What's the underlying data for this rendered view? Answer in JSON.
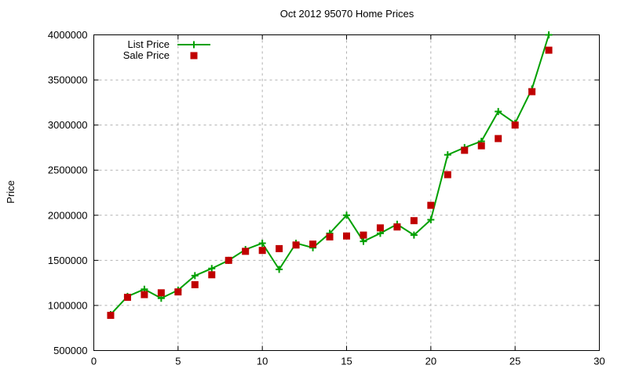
{
  "chart_data": {
    "type": "line",
    "title": "Oct 2012 95070 Home Prices",
    "xlabel": "",
    "ylabel": "Price",
    "xlim": [
      0,
      30
    ],
    "ylim": [
      500000,
      4000000
    ],
    "x_ticks": [
      0,
      5,
      10,
      15,
      20,
      25,
      30
    ],
    "y_ticks": [
      500000,
      1000000,
      1500000,
      2000000,
      2500000,
      3000000,
      3500000,
      4000000
    ],
    "grid": true,
    "grid_style": "dashed",
    "legend_position": "top-left-inside",
    "x": [
      1,
      2,
      3,
      4,
      5,
      6,
      7,
      8,
      9,
      10,
      11,
      12,
      13,
      14,
      15,
      16,
      17,
      18,
      19,
      20,
      21,
      22,
      23,
      24,
      25,
      26,
      27
    ],
    "series": [
      {
        "name": "List Price",
        "color": "#00a000",
        "marker": "plus",
        "line": true,
        "values": [
          900000,
          1100000,
          1180000,
          1080000,
          1170000,
          1330000,
          1410000,
          1500000,
          1620000,
          1690000,
          1400000,
          1690000,
          1640000,
          1800000,
          2000000,
          1710000,
          1800000,
          1900000,
          1780000,
          1950000,
          2670000,
          2750000,
          2820000,
          3150000,
          3020000,
          3400000,
          4000000
        ]
      },
      {
        "name": "Sale Price",
        "color": "#c00000",
        "marker": "square",
        "line": false,
        "values": [
          890000,
          1090000,
          1120000,
          1140000,
          1150000,
          1230000,
          1340000,
          1500000,
          1600000,
          1610000,
          1630000,
          1670000,
          1680000,
          1760000,
          1770000,
          1780000,
          1860000,
          1870000,
          1940000,
          2110000,
          2450000,
          2720000,
          2770000,
          2850000,
          3000000,
          3370000,
          3830000
        ]
      }
    ],
    "colors": {
      "axis": "#000000",
      "grid": "#b0b0b0",
      "background": "#ffffff",
      "text": "#000000"
    }
  }
}
